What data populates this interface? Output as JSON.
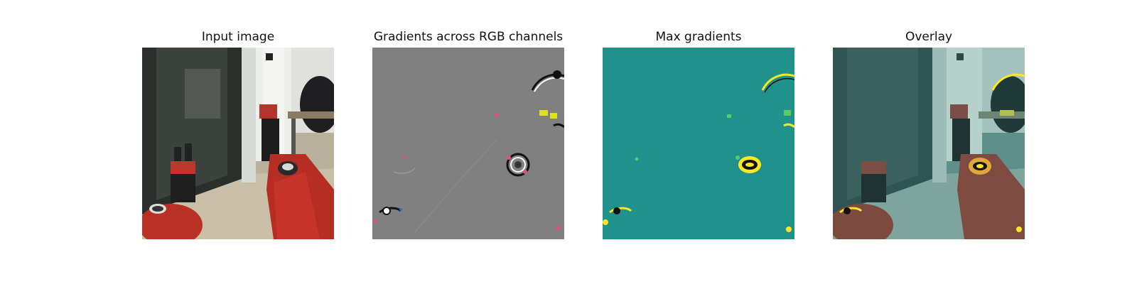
{
  "panels": [
    {
      "title": "Input image"
    },
    {
      "title": "Gradients across RGB channels"
    },
    {
      "title": "Max gradients"
    },
    {
      "title": "Overlay"
    }
  ]
}
